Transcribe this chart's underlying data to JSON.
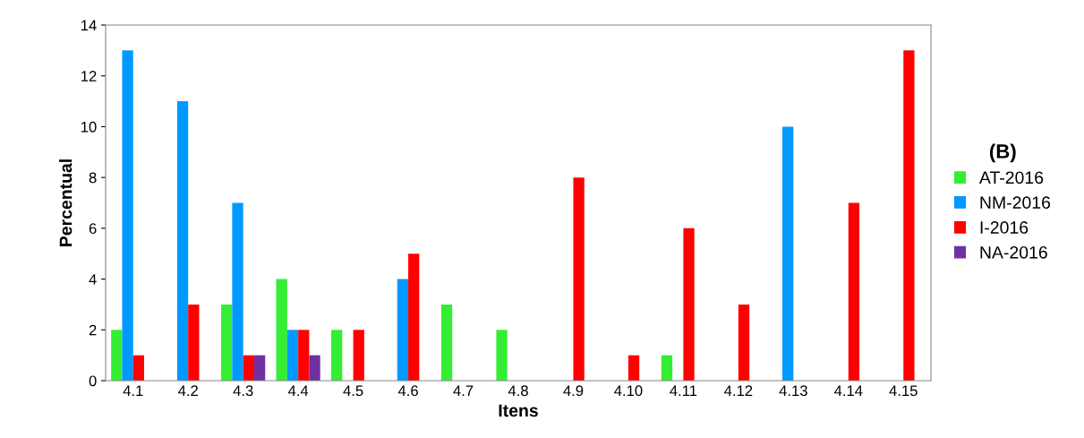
{
  "chart_data": {
    "type": "bar",
    "xlabel": "Itens",
    "ylabel": "Percentual",
    "legend_title": "(B)",
    "legend": "right",
    "grid": false,
    "categories": [
      "4.1",
      "4.2",
      "4.3",
      "4.4",
      "4.5",
      "4.6",
      "4.7",
      "4.8",
      "4.9",
      "4.10",
      "4.11",
      "4.12",
      "4.13",
      "4.14",
      "4.15"
    ],
    "ylim": [
      0,
      14
    ],
    "yticks": [
      0,
      2,
      4,
      6,
      8,
      10,
      12,
      14
    ],
    "series": [
      {
        "name": "AT-2016",
        "color": "#33ee33",
        "values": [
          2,
          0,
          3,
          4,
          2,
          0,
          3,
          2,
          0,
          0,
          1,
          0,
          0,
          0,
          0
        ]
      },
      {
        "name": "NM-2016",
        "color": "#0099ff",
        "values": [
          13,
          11,
          7,
          2,
          0,
          4,
          0,
          0,
          0,
          0,
          0,
          0,
          10,
          0,
          0
        ]
      },
      {
        "name": "I-2016",
        "color": "#ff0000",
        "values": [
          1,
          3,
          1,
          2,
          2,
          5,
          0,
          0,
          8,
          1,
          6,
          3,
          0,
          7,
          13
        ]
      },
      {
        "name": "NA-2016",
        "color": "#7030a0",
        "values": [
          0,
          0,
          1,
          1,
          0,
          0,
          0,
          0,
          0,
          0,
          0,
          0,
          0,
          0,
          0
        ]
      }
    ]
  }
}
